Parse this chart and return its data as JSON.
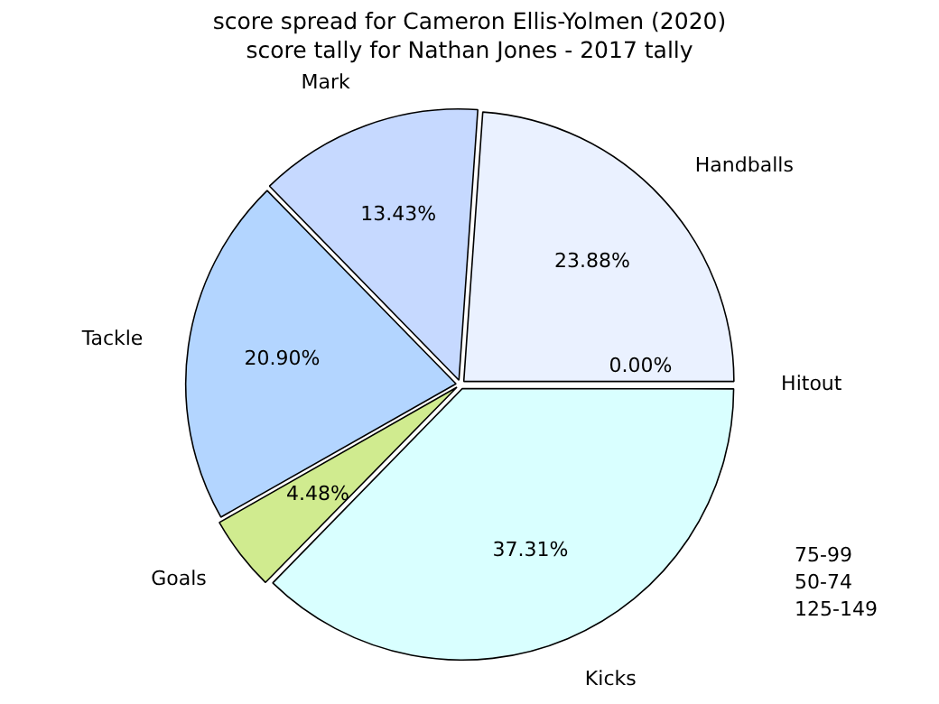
{
  "chart_data": {
    "type": "pie",
    "title": "score tally for Nathan Jones - 2017 tally",
    "subtitle": "score spread for Cameron Ellis-Yolmen (2020)",
    "categories": [
      "Kicks",
      "Goals",
      "Tackle",
      "Mark",
      "Handballs",
      "Hitout"
    ],
    "values": [
      37.31,
      4.48,
      20.9,
      13.43,
      23.88,
      0.0
    ],
    "value_labels": [
      "37.31%",
      "4.48%",
      "20.90%",
      "13.43%",
      "23.88%",
      "0.00%"
    ],
    "colors": [
      "#d9ffff",
      "#d0eb8f",
      "#b3d5ff",
      "#c6d9ff",
      "#eaf1ff",
      "#a8c8f0"
    ],
    "legend": false,
    "annotations": [
      "75-99",
      "50-74",
      "125-149"
    ]
  }
}
